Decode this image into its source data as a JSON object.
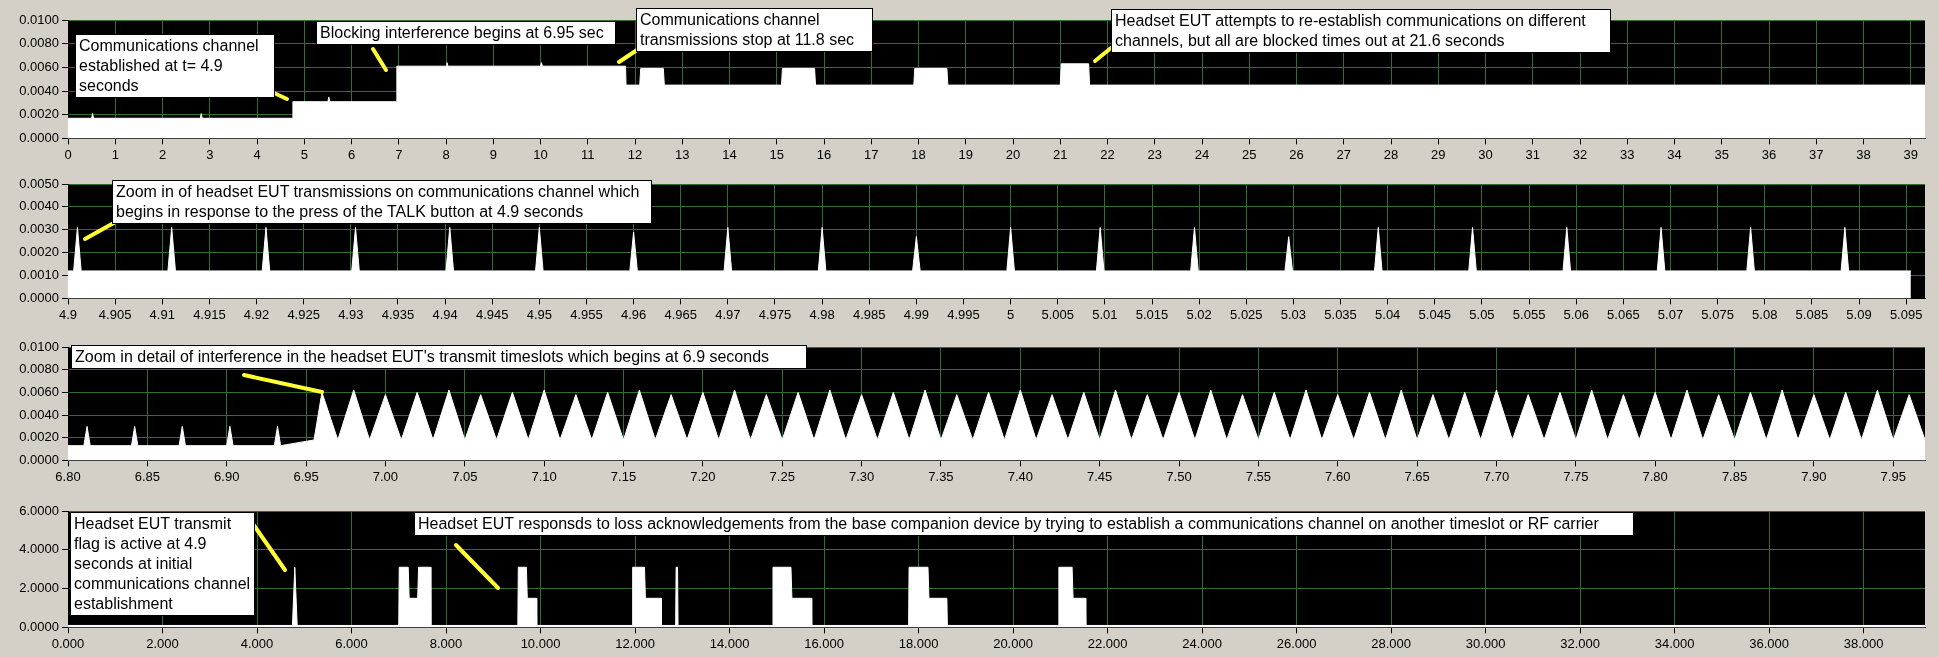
{
  "chart_data": [
    {
      "type": "area",
      "color": "#ffffff",
      "grid": true,
      "x": [
        0,
        0.5,
        0.52,
        0.54,
        2.8,
        2.82,
        2.84,
        4.75,
        4.76,
        5.5,
        5.52,
        5.54,
        6.95,
        6.96,
        8,
        8.02,
        8.04,
        10,
        10.02,
        10.04,
        11.8,
        11.81,
        12.1,
        12.12,
        12.6,
        12.62,
        15.1,
        15.12,
        15.8,
        15.82,
        17.9,
        17.92,
        18.6,
        18.62,
        21.0,
        21.02,
        21.6,
        21.62,
        39.3
      ],
      "values": [
        0.0017,
        0.0017,
        0.0021,
        0.0017,
        0.0017,
        0.0021,
        0.0017,
        0.0017,
        0.0031,
        0.0031,
        0.0035,
        0.0031,
        0.0031,
        0.0061,
        0.0061,
        0.0064,
        0.0061,
        0.0061,
        0.0064,
        0.0061,
        0.0061,
        0.0045,
        0.0045,
        0.0059,
        0.0059,
        0.0045,
        0.0045,
        0.0059,
        0.0059,
        0.0045,
        0.0045,
        0.0059,
        0.0059,
        0.0045,
        0.0045,
        0.0063,
        0.0063,
        0.0045,
        0.0045
      ],
      "xlim": [
        0,
        39.3
      ],
      "xticks": [
        0,
        1,
        2,
        3,
        4,
        5,
        6,
        7,
        8,
        9,
        10,
        11,
        12,
        13,
        14,
        15,
        16,
        17,
        18,
        19,
        20,
        21,
        22,
        23,
        24,
        25,
        26,
        27,
        28,
        29,
        30,
        31,
        32,
        33,
        34,
        35,
        36,
        37,
        38,
        39
      ],
      "ylim": [
        0,
        0.01
      ],
      "yticks": [
        {
          "value": 0,
          "label": "0.0000"
        },
        {
          "value": 0.002,
          "label": "0.0020"
        },
        {
          "value": 0.004,
          "label": "0.0040"
        },
        {
          "value": 0.006,
          "label": "0.0060"
        },
        {
          "value": 0.008,
          "label": "0.0080"
        },
        {
          "value": 0.01,
          "label": "0.0100"
        }
      ],
      "annotations": [
        "Communications channel established at t= 4.9 seconds",
        "Blocking interference begins at 6.95 sec",
        "Communications channel transmissions stop at 11.8 sec",
        "Headset EUT attempts to re-establish communications on different channels, but all are blocked times out at 21.6 seconds"
      ]
    },
    {
      "type": "area",
      "color": "#ffffff",
      "grid": true,
      "x": [
        4.9,
        4.9006,
        4.901,
        4.9014,
        4.9106,
        4.911,
        4.9114,
        4.9206,
        4.921,
        4.9214,
        4.9301,
        4.9305,
        4.9309,
        4.9401,
        4.9405,
        4.9409,
        4.9496,
        4.95,
        4.9504,
        4.9596,
        4.96,
        4.9604,
        4.9696,
        4.97,
        4.9704,
        4.9796,
        4.98,
        4.9804,
        4.9896,
        4.99,
        4.9904,
        4.9996,
        5.0,
        5.0004,
        5.0091,
        5.0095,
        5.0099,
        5.0191,
        5.0195,
        5.0199,
        5.0291,
        5.0295,
        5.0299,
        5.0386,
        5.039,
        5.0394,
        5.0486,
        5.049,
        5.0494,
        5.0586,
        5.059,
        5.0594,
        5.0686,
        5.069,
        5.0694,
        5.0781,
        5.0785,
        5.0789,
        5.0881,
        5.0885,
        5.0889,
        5.0955
      ],
      "values": [
        0.0012,
        0.0012,
        0.0031,
        0.0012,
        0.0012,
        0.0031,
        0.0012,
        0.0012,
        0.0031,
        0.0012,
        0.0012,
        0.0031,
        0.0012,
        0.0012,
        0.0031,
        0.0012,
        0.0012,
        0.0031,
        0.0012,
        0.0012,
        0.0029,
        0.0012,
        0.0012,
        0.0031,
        0.0012,
        0.0012,
        0.0031,
        0.0012,
        0.0012,
        0.0027,
        0.0012,
        0.0012,
        0.0031,
        0.0012,
        0.0012,
        0.0031,
        0.0012,
        0.0012,
        0.0031,
        0.0012,
        0.0012,
        0.0027,
        0.0012,
        0.0012,
        0.0031,
        0.0012,
        0.0012,
        0.0031,
        0.0012,
        0.0012,
        0.0031,
        0.0012,
        0.0012,
        0.0031,
        0.0012,
        0.0012,
        0.0031,
        0.0012,
        0.0012,
        0.0031,
        0.0012,
        0.0012
      ],
      "xlim": [
        4.9,
        5.097
      ],
      "xticks": [
        4.9,
        4.905,
        4.91,
        4.915,
        4.92,
        4.925,
        4.93,
        4.935,
        4.94,
        4.945,
        4.95,
        4.955,
        4.96,
        4.965,
        4.97,
        4.975,
        4.98,
        4.985,
        4.99,
        4.995,
        5,
        5.005,
        5.01,
        5.015,
        5.02,
        5.025,
        5.03,
        5.035,
        5.04,
        5.045,
        5.05,
        5.055,
        5.06,
        5.065,
        5.07,
        5.075,
        5.08,
        5.085,
        5.09,
        5.095
      ],
      "ylim": [
        0,
        0.005
      ],
      "yticks": [
        {
          "value": 0,
          "label": "0.0000"
        },
        {
          "value": 0.001,
          "label": "0.0010"
        },
        {
          "value": 0.002,
          "label": "0.0020"
        },
        {
          "value": 0.003,
          "label": "0.0030"
        },
        {
          "value": 0.004,
          "label": "0.0040"
        },
        {
          "value": 0.005,
          "label": "0.0050"
        }
      ],
      "annotations": [
        "Zoom in of headset EUT transmissions on communications channel which begins in response to the press of the TALK button at 4.9 seconds"
      ]
    },
    {
      "type": "area",
      "color": "#ffffff",
      "grid": true,
      "x": [
        6.8,
        6.81,
        6.812,
        6.814,
        6.84,
        6.842,
        6.844,
        6.87,
        6.872,
        6.874,
        6.9,
        6.902,
        6.904,
        6.93,
        6.932,
        6.934,
        6.955,
        6.96,
        6.97,
        6.98,
        6.99,
        7.0,
        7.01,
        7.02,
        7.03,
        7.04,
        7.05,
        7.06,
        7.07,
        7.08,
        7.09,
        7.1,
        7.11,
        7.12,
        7.13,
        7.14,
        7.15,
        7.16,
        7.17,
        7.18,
        7.19,
        7.2,
        7.21,
        7.22,
        7.23,
        7.24,
        7.25,
        7.26,
        7.27,
        7.28,
        7.29,
        7.3,
        7.31,
        7.32,
        7.33,
        7.34,
        7.35,
        7.36,
        7.37,
        7.38,
        7.39,
        7.4,
        7.41,
        7.42,
        7.43,
        7.44,
        7.45,
        7.46,
        7.47,
        7.48,
        7.49,
        7.5,
        7.51,
        7.52,
        7.53,
        7.54,
        7.55,
        7.56,
        7.57,
        7.58,
        7.59,
        7.6,
        7.61,
        7.62,
        7.63,
        7.64,
        7.65,
        7.66,
        7.67,
        7.68,
        7.69,
        7.7,
        7.71,
        7.72,
        7.73,
        7.74,
        7.75,
        7.76,
        7.77,
        7.78,
        7.79,
        7.8,
        7.81,
        7.82,
        7.83,
        7.84,
        7.85,
        7.86,
        7.87,
        7.88,
        7.89,
        7.9,
        7.91,
        7.92,
        7.93,
        7.94,
        7.95,
        7.96,
        7.97
      ],
      "values": [
        0.0013,
        0.0013,
        0.003,
        0.0013,
        0.0013,
        0.003,
        0.0013,
        0.0013,
        0.003,
        0.0013,
        0.0013,
        0.003,
        0.0013,
        0.0013,
        0.003,
        0.0013,
        0.0018,
        0.006,
        0.0018,
        0.0062,
        0.0018,
        0.0058,
        0.0018,
        0.006,
        0.0018,
        0.0062,
        0.0018,
        0.0058,
        0.0018,
        0.006,
        0.0018,
        0.0062,
        0.0018,
        0.0058,
        0.0018,
        0.006,
        0.0018,
        0.0062,
        0.0018,
        0.0058,
        0.0018,
        0.006,
        0.0018,
        0.0062,
        0.0018,
        0.0058,
        0.0018,
        0.006,
        0.0018,
        0.0062,
        0.0018,
        0.0058,
        0.0018,
        0.006,
        0.0018,
        0.0062,
        0.0018,
        0.0058,
        0.0018,
        0.006,
        0.0018,
        0.0062,
        0.0018,
        0.0058,
        0.0018,
        0.006,
        0.0018,
        0.0062,
        0.0018,
        0.0058,
        0.0018,
        0.006,
        0.0018,
        0.0062,
        0.0018,
        0.0058,
        0.0018,
        0.006,
        0.0018,
        0.0062,
        0.0018,
        0.0058,
        0.0018,
        0.006,
        0.0018,
        0.0062,
        0.0018,
        0.0058,
        0.0018,
        0.006,
        0.0018,
        0.0062,
        0.0018,
        0.0058,
        0.0018,
        0.006,
        0.0018,
        0.0062,
        0.0018,
        0.0058,
        0.0018,
        0.006,
        0.0018,
        0.0062,
        0.0018,
        0.0058,
        0.0018,
        0.006,
        0.0018,
        0.0062,
        0.0018,
        0.0058,
        0.0018,
        0.006,
        0.0018,
        0.0062,
        0.0018,
        0.0058,
        0.0018
      ],
      "xlim": [
        6.8,
        7.97
      ],
      "xticks": [
        {
          "value": 6.8,
          "label": "6.80"
        },
        {
          "value": 6.85,
          "label": "6.85"
        },
        {
          "value": 6.9,
          "label": "6.90"
        },
        {
          "value": 6.95,
          "label": "6.95"
        },
        {
          "value": 7.0,
          "label": "7.00"
        },
        {
          "value": 7.05,
          "label": "7.05"
        },
        {
          "value": 7.1,
          "label": "7.10"
        },
        {
          "value": 7.15,
          "label": "7.15"
        },
        {
          "value": 7.2,
          "label": "7.20"
        },
        {
          "value": 7.25,
          "label": "7.25"
        },
        {
          "value": 7.3,
          "label": "7.30"
        },
        {
          "value": 7.35,
          "label": "7.35"
        },
        {
          "value": 7.4,
          "label": "7.40"
        },
        {
          "value": 7.45,
          "label": "7.45"
        },
        {
          "value": 7.5,
          "label": "7.50"
        },
        {
          "value": 7.55,
          "label": "7.55"
        },
        {
          "value": 7.6,
          "label": "7.60"
        },
        {
          "value": 7.65,
          "label": "7.65"
        },
        {
          "value": 7.7,
          "label": "7.70"
        },
        {
          "value": 7.75,
          "label": "7.75"
        },
        {
          "value": 7.8,
          "label": "7.80"
        },
        {
          "value": 7.85,
          "label": "7.85"
        },
        {
          "value": 7.9,
          "label": "7.90"
        },
        {
          "value": 7.95,
          "label": "7.95"
        }
      ],
      "ylim": [
        0,
        0.01
      ],
      "yticks": [
        {
          "value": 0,
          "label": "0.0000"
        },
        {
          "value": 0.002,
          "label": "0.0020"
        },
        {
          "value": 0.004,
          "label": "0.0040"
        },
        {
          "value": 0.006,
          "label": "0.0060"
        },
        {
          "value": 0.008,
          "label": "0.0080"
        },
        {
          "value": 0.01,
          "label": "0.0100"
        }
      ],
      "annotations": [
        {
          "text": "Zoom in detail of interference in the headset EUT's transmit timeslots which begins at 6.9 seconds",
          "x": 6.96,
          "y": 0.006
        }
      ]
    },
    {
      "type": "area",
      "color": "#ffffff",
      "grid": true,
      "x": [
        0,
        4.75,
        4.8,
        4.85,
        7.0,
        7.01,
        7.2,
        7.22,
        7.4,
        7.42,
        7.67,
        7.68,
        9.52,
        9.53,
        9.7,
        9.72,
        9.91,
        9.92,
        11.94,
        11.95,
        12.2,
        12.22,
        12.55,
        12.56,
        12.86,
        12.87,
        12.9,
        12.91,
        14.91,
        14.92,
        15.3,
        15.32,
        15.73,
        15.74,
        17.79,
        17.8,
        18.2,
        18.22,
        18.6,
        18.61,
        20.96,
        20.97,
        21.25,
        21.27,
        21.53,
        21.54,
        39.3
      ],
      "values": [
        0.1,
        0.1,
        3.1,
        0.1,
        0.1,
        3.1,
        3.1,
        1.5,
        1.5,
        3.1,
        3.1,
        0.1,
        0.1,
        3.1,
        3.1,
        1.5,
        1.5,
        0.1,
        0.1,
        3.1,
        3.1,
        1.5,
        1.5,
        0.1,
        0.1,
        3.1,
        3.1,
        0.1,
        0.1,
        3.1,
        3.1,
        1.5,
        1.5,
        0.1,
        0.1,
        3.1,
        3.1,
        1.5,
        1.5,
        0.1,
        0.1,
        3.1,
        3.1,
        1.5,
        1.5,
        0.1,
        0.1
      ],
      "xlim": [
        0,
        39.3
      ],
      "xticks": [
        {
          "value": 0,
          "label": "0.000"
        },
        {
          "value": 2,
          "label": "2.000"
        },
        {
          "value": 4,
          "label": "4.000"
        },
        {
          "value": 6,
          "label": "6.000"
        },
        {
          "value": 8,
          "label": "8.000"
        },
        {
          "value": 10,
          "label": "10.000"
        },
        {
          "value": 12,
          "label": "12.000"
        },
        {
          "value": 14,
          "label": "14.000"
        },
        {
          "value": 16,
          "label": "16.000"
        },
        {
          "value": 18,
          "label": "18.000"
        },
        {
          "value": 20,
          "label": "20.000"
        },
        {
          "value": 22,
          "label": "22.000"
        },
        {
          "value": 24,
          "label": "24.000"
        },
        {
          "value": 26,
          "label": "26.000"
        },
        {
          "value": 28,
          "label": "28.000"
        },
        {
          "value": 30,
          "label": "30.000"
        },
        {
          "value": 32,
          "label": "32.000"
        },
        {
          "value": 34,
          "label": "34.000"
        },
        {
          "value": 36,
          "label": "36.000"
        },
        {
          "value": 38,
          "label": "38.000"
        }
      ],
      "ylim": [
        0,
        6
      ],
      "yticks": [
        {
          "value": 0,
          "label": "0.0000"
        },
        {
          "value": 2,
          "label": "2.0000"
        },
        {
          "value": 4,
          "label": "4.0000"
        },
        {
          "value": 6,
          "label": "6.0000"
        }
      ],
      "annotations": [
        "Headset EUT transmit flag is active at 4.9 seconds at initial communications channel establishment",
        "Headset EUT responsds to loss acknowledgements from the base companion device by trying to establish a communications channel on another timeslot or RF carrier"
      ]
    }
  ]
}
